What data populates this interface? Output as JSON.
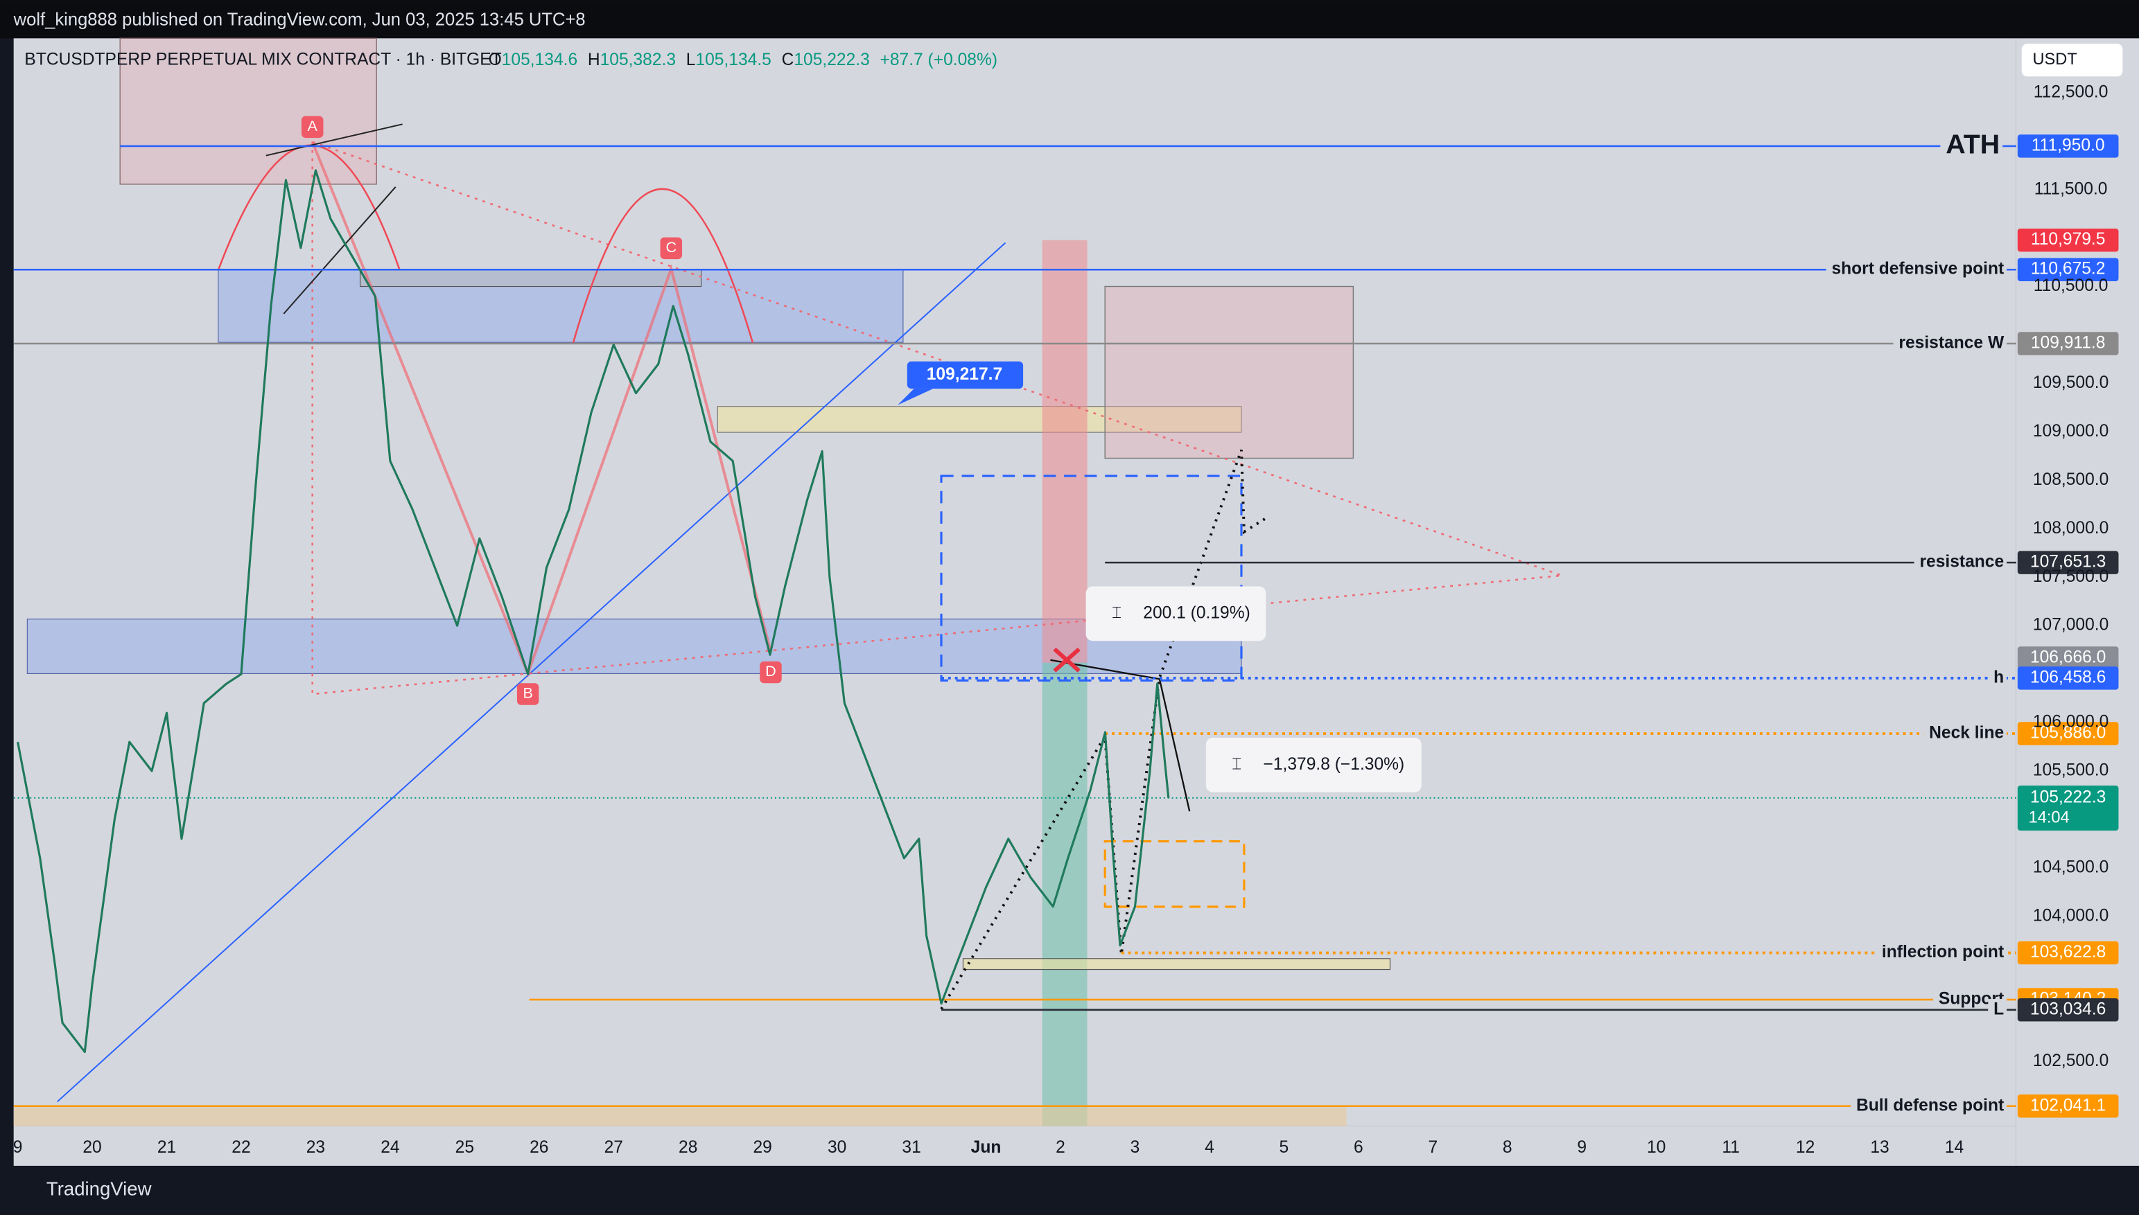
{
  "header": {
    "publisher": "wolf_king888 published on TradingView.com, Jun 03, 2025 13:45 UTC+8"
  },
  "legend": {
    "symbol": "BTCUSDTPERP PERPETUAL MIX CONTRACT · 1h · BITGET",
    "open_label": "O",
    "open": "105,134.6",
    "high_label": "H",
    "high": "105,382.3",
    "low_label": "L",
    "low": "105,134.5",
    "close_label": "C",
    "close": "105,222.3",
    "change": "+87.7 (+0.08%)"
  },
  "currency": "USDT",
  "price_axis": [
    "112,500.0",
    "111,500.0",
    "110,500.0",
    "109,500.0",
    "109,000.0",
    "108,500.0",
    "108,000.0",
    "107,500.0",
    "107,000.0",
    "106,000.0",
    "105,500.0",
    "104,500.0",
    "104,000.0",
    "102,500.0"
  ],
  "levels": [
    {
      "label": "ATH",
      "price": "111,950.0",
      "color": "#2962ff",
      "style": "solid"
    },
    {
      "price": "110,979.5",
      "color": "#f23645",
      "style": "none"
    },
    {
      "label": "short defensive point",
      "price": "110,675.2",
      "color": "#2962ff",
      "style": "solid"
    },
    {
      "label": "resistance W",
      "price": "109,911.8",
      "color": "#8a8a8a",
      "style": "solid"
    },
    {
      "label": "resistance",
      "price": "107,651.3",
      "color": "#2a2e39",
      "style": "solid"
    },
    {
      "price": "106,666.0",
      "color": "#8a8d96",
      "style": "none"
    },
    {
      "label": "h",
      "price": "106,458.6",
      "color": "#2962ff",
      "style": "dotted"
    },
    {
      "label": "Neck line",
      "price": "105,886.0",
      "color": "#ff9800",
      "style": "dotted"
    },
    {
      "label": "inflection point",
      "price": "103,622.8",
      "color": "#ff9800",
      "style": "dotted"
    },
    {
      "label": "Support",
      "price": "103,140.2",
      "color": "#ff9800",
      "style": "solid"
    },
    {
      "label": "L",
      "price": "103,034.6",
      "color": "#2a2e39",
      "style": "solid"
    },
    {
      "label": "Bull defense point",
      "price": "102,041.1",
      "color": "#ff9800",
      "style": "solid"
    }
  ],
  "last_price": {
    "price": "105,222.3",
    "countdown": "14:04",
    "color": "#089981"
  },
  "time_axis": [
    "9",
    "20",
    "21",
    "22",
    "23",
    "24",
    "25",
    "26",
    "27",
    "28",
    "29",
    "30",
    "31",
    "Jun",
    "2",
    "3",
    "4",
    "5",
    "6",
    "7",
    "8",
    "9",
    "10",
    "11",
    "12",
    "13",
    "14"
  ],
  "price_path": {
    "day": [
      0,
      0.3,
      0.5,
      0.6,
      0.9,
      1.0,
      1.3,
      1.5,
      1.8,
      2.0,
      2.2,
      2.5,
      2.8,
      3.0,
      3.2,
      3.4,
      3.6,
      3.8,
      4.0,
      4.2,
      4.5,
      4.8,
      5.0,
      5.3,
      5.6,
      5.9,
      6.2,
      6.5,
      6.85,
      7.1,
      7.4,
      7.7,
      8.0,
      8.3,
      8.6,
      8.8,
      9.0,
      9.3,
      9.6,
      9.9,
      10.1,
      10.3,
      10.6,
      10.8,
      10.9,
      11.1,
      11.4,
      11.7,
      11.9,
      12.1,
      12.2,
      12.4,
      12.7,
      13.0,
      13.3,
      13.6,
      13.9,
      14.1,
      14.4,
      14.6,
      14.7,
      14.8,
      15.0,
      15.2,
      15.3,
      15.4,
      15.45
    ],
    "close": [
      105800,
      104600,
      103500,
      102900,
      102600,
      103300,
      105000,
      105800,
      105500,
      106100,
      104800,
      106200,
      106400,
      106500,
      108500,
      110300,
      111600,
      110900,
      111700,
      111200,
      110800,
      110400,
      108700,
      108200,
      107600,
      107000,
      107900,
      107300,
      106500,
      107600,
      108200,
      109200,
      109900,
      109400,
      109700,
      110300,
      109800,
      108900,
      108700,
      107300,
      106700,
      107400,
      108300,
      108800,
      107500,
      106200,
      105600,
      105000,
      104600,
      104800,
      103800,
      103100,
      103700,
      104300,
      104800,
      104400,
      104100,
      104600,
      105300,
      105900,
      104700,
      103700,
      104100,
      105500,
      106400,
      105600,
      105222.3
    ]
  },
  "annotations": {
    "callout": "109,217.7",
    "measure_up": "200.1 (0.19%)",
    "measure_down": "−1,379.8 (−1.30%)",
    "points": [
      "A",
      "B",
      "C",
      "D"
    ]
  },
  "footer": "TradingView"
}
